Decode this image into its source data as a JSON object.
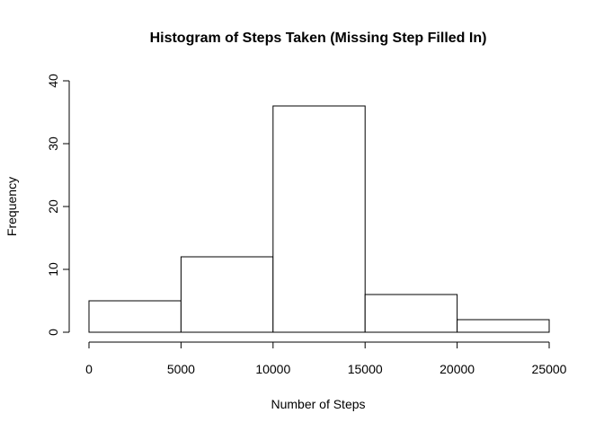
{
  "chart_data": {
    "type": "bar",
    "title": "Histogram of Steps Taken (Missing Step Filled In)",
    "xlabel": "Number of Steps",
    "ylabel": "Frequency",
    "bins": [
      {
        "from": 0,
        "to": 5000,
        "count": 5
      },
      {
        "from": 5000,
        "to": 10000,
        "count": 12
      },
      {
        "from": 10000,
        "to": 15000,
        "count": 36
      },
      {
        "from": 15000,
        "to": 20000,
        "count": 6
      },
      {
        "from": 20000,
        "to": 25000,
        "count": 2
      }
    ],
    "xlim": [
      0,
      25000
    ],
    "ylim": [
      0,
      40
    ],
    "x_ticks": [
      0,
      5000,
      10000,
      15000,
      20000,
      25000
    ],
    "y_ticks": [
      0,
      10,
      20,
      30,
      40
    ],
    "grid": false,
    "colors": {
      "bar_fill": "#ffffff",
      "bar_stroke": "#000000"
    }
  }
}
